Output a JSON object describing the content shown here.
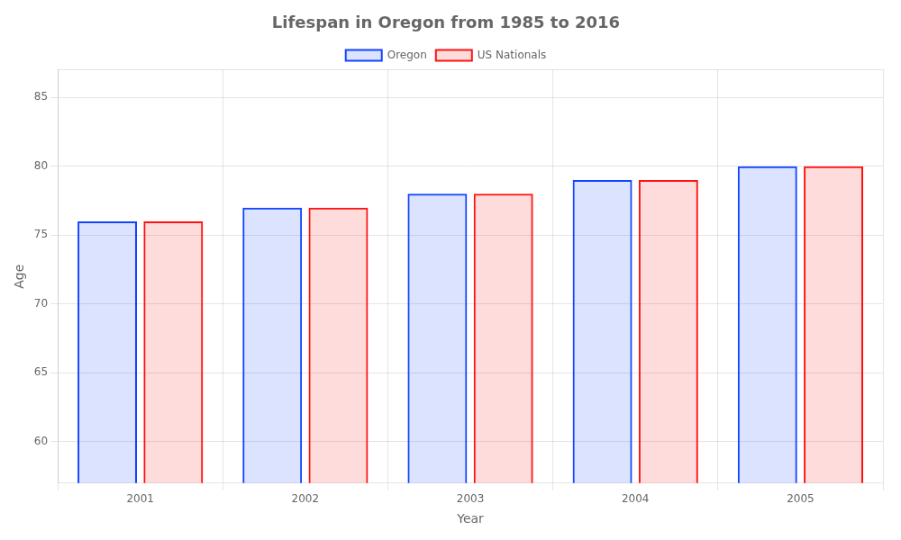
{
  "chart_data": {
    "type": "bar",
    "title": "Lifespan in Oregon from 1985 to 2016",
    "x_label": "Year",
    "y_label": "Age",
    "categories": [
      "2001",
      "2002",
      "2003",
      "2004",
      "2005"
    ],
    "series": [
      {
        "name": "Oregon",
        "color": "#1144ff",
        "values": [
          76,
          77,
          78,
          79,
          80
        ]
      },
      {
        "name": "US Nationals",
        "color": "#ff1111",
        "values": [
          76,
          77,
          78,
          79,
          80
        ]
      }
    ],
    "ylim": [
      57,
      87
    ],
    "yticks": [
      60,
      65,
      70,
      75,
      80,
      85
    ],
    "grid": true,
    "legend": "top"
  }
}
